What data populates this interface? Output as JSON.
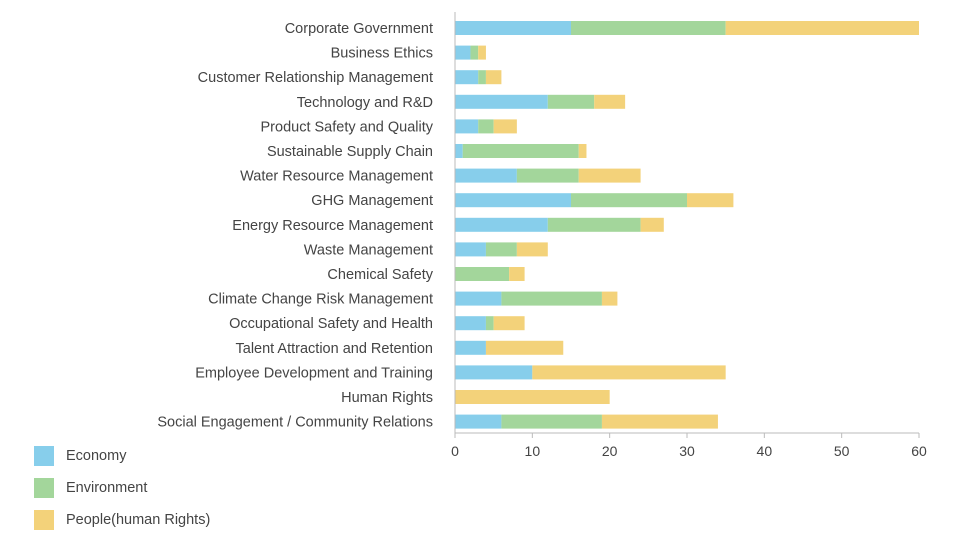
{
  "chart_data": {
    "type": "bar",
    "orientation": "horizontal",
    "stacked": true,
    "categories": [
      "Corporate Government",
      "Business Ethics",
      "Customer Relationship Management",
      "Technology and R&D",
      "Product Safety and Quality",
      "Sustainable Supply Chain",
      "Water Resource Management",
      "GHG Management",
      "Energy Resource Management",
      "Waste Management",
      "Chemical Safety",
      "Climate Change Risk Management",
      "Occupational Safety and Health",
      "Talent Attraction and Retention",
      "Employee Development and Training",
      "Human Rights",
      "Social Engagement / Community Relations"
    ],
    "series": [
      {
        "name": "Economy",
        "color": "#87ceeb",
        "values": [
          15,
          2,
          3,
          12,
          3,
          1,
          8,
          15,
          12,
          4,
          0,
          6,
          4,
          4,
          10,
          0,
          6
        ]
      },
      {
        "name": "Environment",
        "color": "#a3d69b",
        "values": [
          20,
          1,
          1,
          6,
          2,
          15,
          8,
          15,
          12,
          4,
          7,
          13,
          1,
          0,
          0,
          0,
          13
        ]
      },
      {
        "name": "People(human Rights)",
        "color": "#f3d27a",
        "values": [
          25,
          1,
          2,
          4,
          3,
          1,
          8,
          6,
          3,
          4,
          2,
          2,
          4,
          10,
          25,
          20,
          15
        ]
      }
    ],
    "xlim": [
      0,
      60
    ],
    "xticks": [
      0,
      10,
      20,
      30,
      40,
      50,
      60
    ],
    "title": "",
    "xlabel": "",
    "ylabel": "",
    "grid": false,
    "legend_position": "bottom-left"
  }
}
